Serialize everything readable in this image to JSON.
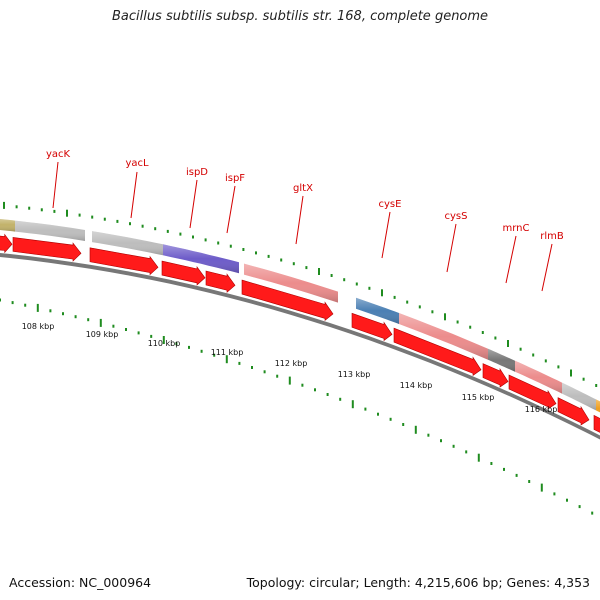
{
  "title": "Bacillus subtilis subsp. subtilis str. 168, complete genome",
  "footer": {
    "accession_label": "Accession: NC_000964",
    "summary": "Topology: circular; Length: 4,215,606 bp; Genes: 4,353"
  },
  "gene_labels": [
    {
      "name": "yacK"
    },
    {
      "name": "yacL"
    },
    {
      "name": "ispD"
    },
    {
      "name": "ispF"
    },
    {
      "name": "gltX"
    },
    {
      "name": "cysE"
    },
    {
      "name": "cysS"
    },
    {
      "name": "mrnC"
    },
    {
      "name": "rlmB"
    }
  ],
  "kbp_labels": [
    "108 kbp",
    "109 kbp",
    "110 kbp",
    "111 kbp",
    "112 kbp",
    "113 kbp",
    "114 kbp",
    "115 kbp",
    "116 kbp"
  ],
  "colors": {
    "feature_grey": "#bdbdbd",
    "feature_purple": "#6d5cc9",
    "feature_pink": "#ec8c8c",
    "feature_blue": "#4a7fb3",
    "feature_dark": "#777777",
    "feature_olive": "#c2b26a",
    "feature_orange": "#f0a020",
    "arrow_red": "#ff1a1a",
    "backbone": "#777777",
    "tick_green": "#1f8c1f",
    "label_red": "#d40000"
  }
}
